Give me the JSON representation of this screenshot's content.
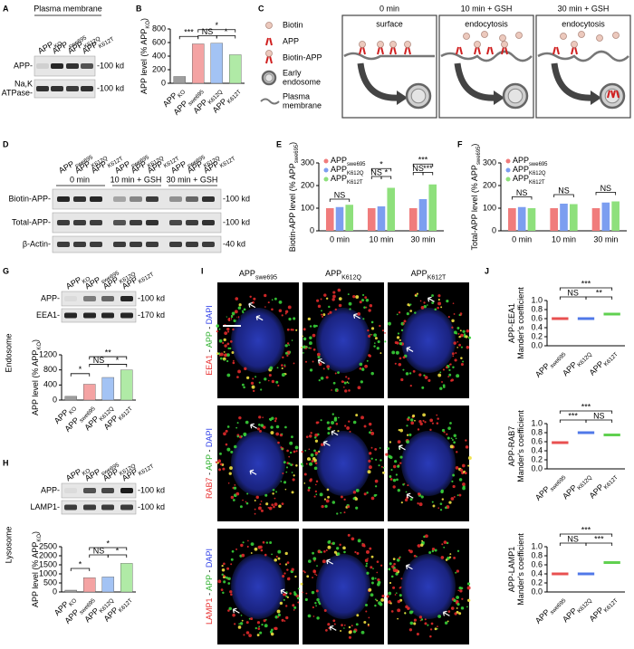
{
  "A": {
    "label": "A",
    "title": "Plasma membrane",
    "lanes": [
      [
        "APP",
        "KO"
      ],
      [
        "APP",
        "swe695"
      ],
      [
        "APP",
        "K612Q"
      ],
      [
        "APP",
        "K612T"
      ]
    ],
    "rows": [
      {
        "name": [
          "APP-"
        ],
        "size": "-100 kd"
      },
      {
        "name": [
          "Na,K",
          "ATPase-"
        ],
        "size": "-100 kd"
      }
    ]
  },
  "B": {
    "label": "B",
    "type": "bar",
    "ylabel": [
      [
        "APP level (% APP",
        "KO",
        ")"
      ]
    ],
    "categories": [
      [
        "APP",
        "KO"
      ],
      [
        "APP",
        "swe695"
      ],
      [
        "APP",
        "K612Q"
      ],
      [
        "APP",
        "K612T"
      ]
    ],
    "values": [
      100,
      580,
      590,
      420
    ],
    "colors": [
      "#9e9e9e",
      "#f4a3a3",
      "#a3c3f4",
      "#b0eaa6"
    ],
    "ylim": [
      0,
      800
    ],
    "yticks": [
      0,
      200,
      400,
      600,
      800
    ],
    "significance": [
      "***",
      "NS",
      "*",
      "*"
    ]
  },
  "C": {
    "label": "C",
    "legend": [
      [
        "Biotin"
      ],
      [
        "APP"
      ],
      [
        "Biotin-APP"
      ],
      [
        "Early",
        "endosome"
      ],
      [
        "Plasma",
        "membrane"
      ]
    ],
    "times": [
      "0 min",
      "10 min + GSH",
      "30 min + GSH"
    ],
    "steps": [
      "surface",
      "endocytosis",
      "endocytosis"
    ]
  },
  "D": {
    "label": "D",
    "groups": [
      {
        "title": "0 min",
        "lanes": [
          [
            "APP",
            "swe695"
          ],
          [
            "APP",
            "K612Q"
          ],
          [
            "APP",
            "K612T"
          ]
        ]
      },
      {
        "title": "10 min + GSH",
        "lanes": [
          [
            "APP",
            "swe695"
          ],
          [
            "APP",
            "K612Q"
          ],
          [
            "APP",
            "K612T"
          ]
        ]
      },
      {
        "title": "30 min + GSH",
        "lanes": [
          [
            "APP",
            "swe695"
          ],
          [
            "APP",
            "K612Q"
          ],
          [
            "APP",
            "K612T"
          ]
        ]
      }
    ],
    "rows": [
      {
        "name": [
          "Biotin-APP-"
        ],
        "size": "-100 kd"
      },
      {
        "name": [
          "Total-APP-"
        ],
        "size": "-100 kd"
      },
      {
        "name": [
          "β-Actin-"
        ],
        "size": "-40 kd"
      }
    ]
  },
  "E": {
    "label": "E",
    "type": "grouped_bar",
    "ylabel": [
      [
        "Biotin-APP level (% APP",
        "swe695",
        ")"
      ]
    ],
    "categories": [
      "0 min",
      "10 min",
      "30 min"
    ],
    "series": [
      {
        "name": [
          "APP",
          "swe695"
        ],
        "color": "#f07c7c",
        "values": [
          100,
          100,
          100
        ]
      },
      {
        "name": [
          "APP",
          "K612Q"
        ],
        "color": "#7c9ef0",
        "values": [
          105,
          108,
          140
        ]
      },
      {
        "name": [
          "APP",
          "K612T"
        ],
        "color": "#8ee07c",
        "values": [
          115,
          190,
          205
        ]
      }
    ],
    "ylim": [
      0,
      300
    ],
    "yticks": [
      0,
      100,
      200,
      300
    ],
    "significance": [
      "NS",
      "*",
      "NS",
      "*",
      "***",
      "NS",
      "***"
    ]
  },
  "F": {
    "label": "F",
    "type": "grouped_bar",
    "ylabel": [
      [
        "Total-APP level (% APP",
        "swe695",
        ")"
      ]
    ],
    "categories": [
      "0 min",
      "10 min",
      "30 min"
    ],
    "series": [
      {
        "name": [
          "APP",
          "swe695"
        ],
        "color": "#f07c7c",
        "values": [
          100,
          100,
          100
        ]
      },
      {
        "name": [
          "APP",
          "K612Q"
        ],
        "color": "#7c9ef0",
        "values": [
          105,
          120,
          125
        ]
      },
      {
        "name": [
          "APP",
          "K612T"
        ],
        "color": "#8ee07c",
        "values": [
          100,
          118,
          130
        ]
      }
    ],
    "ylim": [
      0,
      300
    ],
    "yticks": [
      0,
      100,
      200,
      300
    ],
    "significance": [
      "NS",
      "NS",
      "NS"
    ]
  },
  "G": {
    "label": "G",
    "section": "Endosome",
    "lanes": [
      [
        "APP",
        "KO"
      ],
      [
        "APP",
        "swe695"
      ],
      [
        "APP",
        "K612Q"
      ],
      [
        "APP",
        "K612T"
      ]
    ],
    "rows": [
      {
        "name": [
          "APP-"
        ],
        "size": "-100 kd"
      },
      {
        "name": [
          "EEA1-"
        ],
        "size": "-170 kd"
      }
    ],
    "chart": {
      "type": "bar",
      "ylabel": [
        [
          "APP level (% APP",
          "KO",
          ")"
        ]
      ],
      "categories": [
        [
          "APP",
          "KO"
        ],
        [
          "APP",
          "swe695"
        ],
        [
          "APP",
          "K612Q"
        ],
        [
          "APP",
          "K612T"
        ]
      ],
      "values": [
        100,
        420,
        600,
        800
      ],
      "colors": [
        "#9e9e9e",
        "#f4a3a3",
        "#a3c3f4",
        "#b0eaa6"
      ],
      "ylim": [
        0,
        1200
      ],
      "yticks": [
        0,
        400,
        800,
        1200
      ],
      "significance": [
        "*",
        "**",
        "NS",
        "*"
      ]
    }
  },
  "H": {
    "label": "H",
    "section": "Lysosome",
    "lanes": [
      [
        "APP",
        "KO"
      ],
      [
        "APP",
        "swe695"
      ],
      [
        "APP",
        "K612Q"
      ],
      [
        "APP",
        "K612T"
      ]
    ],
    "rows": [
      {
        "name": [
          "APP-"
        ],
        "size": "-100 kd"
      },
      {
        "name": [
          "LAMP1-"
        ],
        "size": "-100 kd"
      }
    ],
    "chart": {
      "type": "bar",
      "ylabel": [
        [
          "APP level (% APP",
          "KO",
          ")"
        ]
      ],
      "categories": [
        [
          "APP",
          "KO"
        ],
        [
          "APP",
          "swe695"
        ],
        [
          "APP",
          "K612Q"
        ],
        [
          "APP",
          "K612T"
        ]
      ],
      "values": [
        100,
        790,
        830,
        1580
      ],
      "colors": [
        "#9e9e9e",
        "#f4a3a3",
        "#a3c3f4",
        "#b0eaa6"
      ],
      "ylim": [
        0,
        2500
      ],
      "yticks": [
        0,
        500,
        1000,
        1500,
        2000,
        2500
      ],
      "significance": [
        "*",
        "*",
        "NS",
        "*"
      ]
    }
  },
  "I": {
    "label": "I",
    "columns": [
      [
        "APP",
        "swe695"
      ],
      [
        "APP",
        "K612Q"
      ],
      [
        "APP",
        "K612T"
      ]
    ],
    "rows": [
      [
        {
          "text": "EEA1",
          "color": "#e83030"
        },
        {
          "text": " - ",
          "color": "#000000"
        },
        {
          "text": "APP",
          "color": "#2fb02f"
        },
        {
          "text": " - ",
          "color": "#000000"
        },
        {
          "text": "DAPI",
          "color": "#3040e8"
        }
      ],
      [
        {
          "text": "RAB7",
          "color": "#e83030"
        },
        {
          "text": " - ",
          "color": "#000000"
        },
        {
          "text": "APP",
          "color": "#2fb02f"
        },
        {
          "text": " - ",
          "color": "#000000"
        },
        {
          "text": "DAPI",
          "color": "#3040e8"
        }
      ],
      [
        {
          "text": "LAMP1",
          "color": "#e83030"
        },
        {
          "text": " - ",
          "color": "#000000"
        },
        {
          "text": "APP",
          "color": "#2fb02f"
        },
        {
          "text": " - ",
          "color": "#000000"
        },
        {
          "text": "DAPI",
          "color": "#3040e8"
        }
      ]
    ],
    "scale": "5 μm"
  },
  "J": {
    "label": "J",
    "plots": [
      {
        "type": "dot",
        "ylabel": [
          [
            "APP-EEA1"
          ],
          [
            "Mander's coefficient"
          ]
        ],
        "categories": [
          [
            "APP",
            "swe695"
          ],
          [
            "APP",
            "K612Q"
          ],
          [
            "APP",
            "K612T"
          ]
        ],
        "values": [
          0.6,
          0.6,
          0.7
        ],
        "colors": [
          "#e85050",
          "#5078e8",
          "#60d050"
        ],
        "ylim": [
          0,
          1
        ],
        "yticks": [
          {
            "value": 0,
            "label": "0.0"
          },
          0.2,
          0.4,
          0.6,
          0.8,
          {
            "value": 1,
            "label": "1.0"
          }
        ],
        "significance": [
          "***",
          "NS",
          "**"
        ]
      },
      {
        "type": "dot",
        "ylabel": [
          [
            "APP-RAB7"
          ],
          [
            "Mander's coefficient"
          ]
        ],
        "categories": [
          [
            "APP",
            "swe695"
          ],
          [
            "APP",
            "K612Q"
          ],
          [
            "APP",
            "K612T"
          ]
        ],
        "values": [
          0.58,
          0.8,
          0.75
        ],
        "colors": [
          "#e85050",
          "#5078e8",
          "#60d050"
        ],
        "ylim": [
          0,
          1
        ],
        "yticks": [
          {
            "value": 0,
            "label": "0.0"
          },
          0.2,
          0.4,
          0.6,
          0.8,
          {
            "value": 1,
            "label": "1.0"
          }
        ],
        "significance": [
          "***",
          "***",
          "NS"
        ]
      },
      {
        "type": "dot",
        "ylabel": [
          [
            "APP-LAMP1"
          ],
          [
            "Mander's coefficient"
          ]
        ],
        "categories": [
          [
            "APP",
            "swe695"
          ],
          [
            "APP",
            "K612Q"
          ],
          [
            "APP",
            "K612T"
          ]
        ],
        "values": [
          0.4,
          0.4,
          0.65
        ],
        "colors": [
          "#e85050",
          "#5078e8",
          "#60d050"
        ],
        "ylim": [
          0,
          1
        ],
        "yticks": [
          {
            "value": 0,
            "label": "0.0"
          },
          0.2,
          0.4,
          0.6,
          0.8,
          {
            "value": 1,
            "label": "1.0"
          }
        ],
        "significance": [
          "***",
          "NS",
          "***"
        ]
      }
    ]
  }
}
